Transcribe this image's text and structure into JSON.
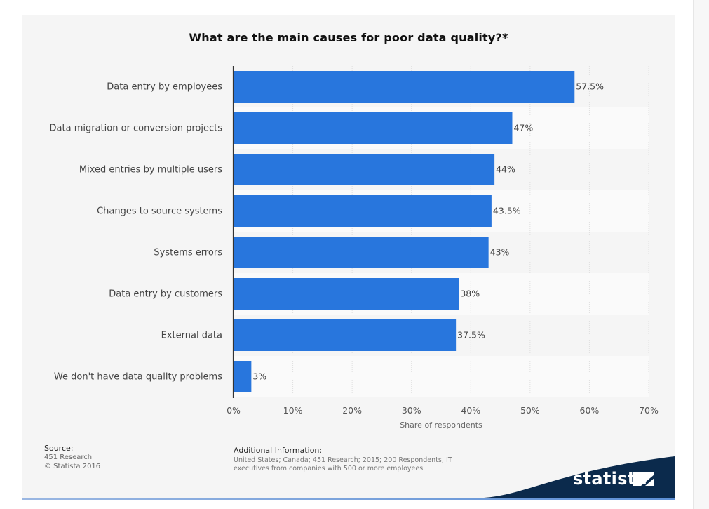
{
  "chart_data": {
    "type": "bar",
    "orientation": "horizontal",
    "title": "What are the main causes for poor data quality?*",
    "xlabel": "Share of respondents",
    "categories": [
      "Data entry by employees",
      "Data migration or conversion projects",
      "Mixed entries by multiple users",
      "Changes to source systems",
      "Systems errors",
      "Data entry by customers",
      "External data",
      "We don't have data quality problems"
    ],
    "values": [
      57.5,
      47,
      44,
      43.5,
      43,
      38,
      37.5,
      3
    ],
    "value_labels": [
      "57.5%",
      "47%",
      "44%",
      "43.5%",
      "43%",
      "38%",
      "37.5%",
      "3%"
    ],
    "xlim": [
      0,
      70
    ],
    "xticks": [
      0,
      10,
      20,
      30,
      40,
      50,
      60,
      70
    ],
    "xtick_labels": [
      "0%",
      "10%",
      "20%",
      "30%",
      "40%",
      "50%",
      "60%",
      "70%"
    ],
    "grid": true,
    "bar_color": "#2876dd"
  },
  "footer": {
    "source_heading": "Source:",
    "source_lines": [
      "451 Research",
      "© Statista 2016"
    ],
    "additional_heading": "Additional Information:",
    "additional_text": "United States; Canada; 451 Research; 2015; 200 Respondents; IT executives from companies with 500 or more employees"
  },
  "brand": {
    "name": "statista",
    "band_color": "#0b2a4c"
  }
}
